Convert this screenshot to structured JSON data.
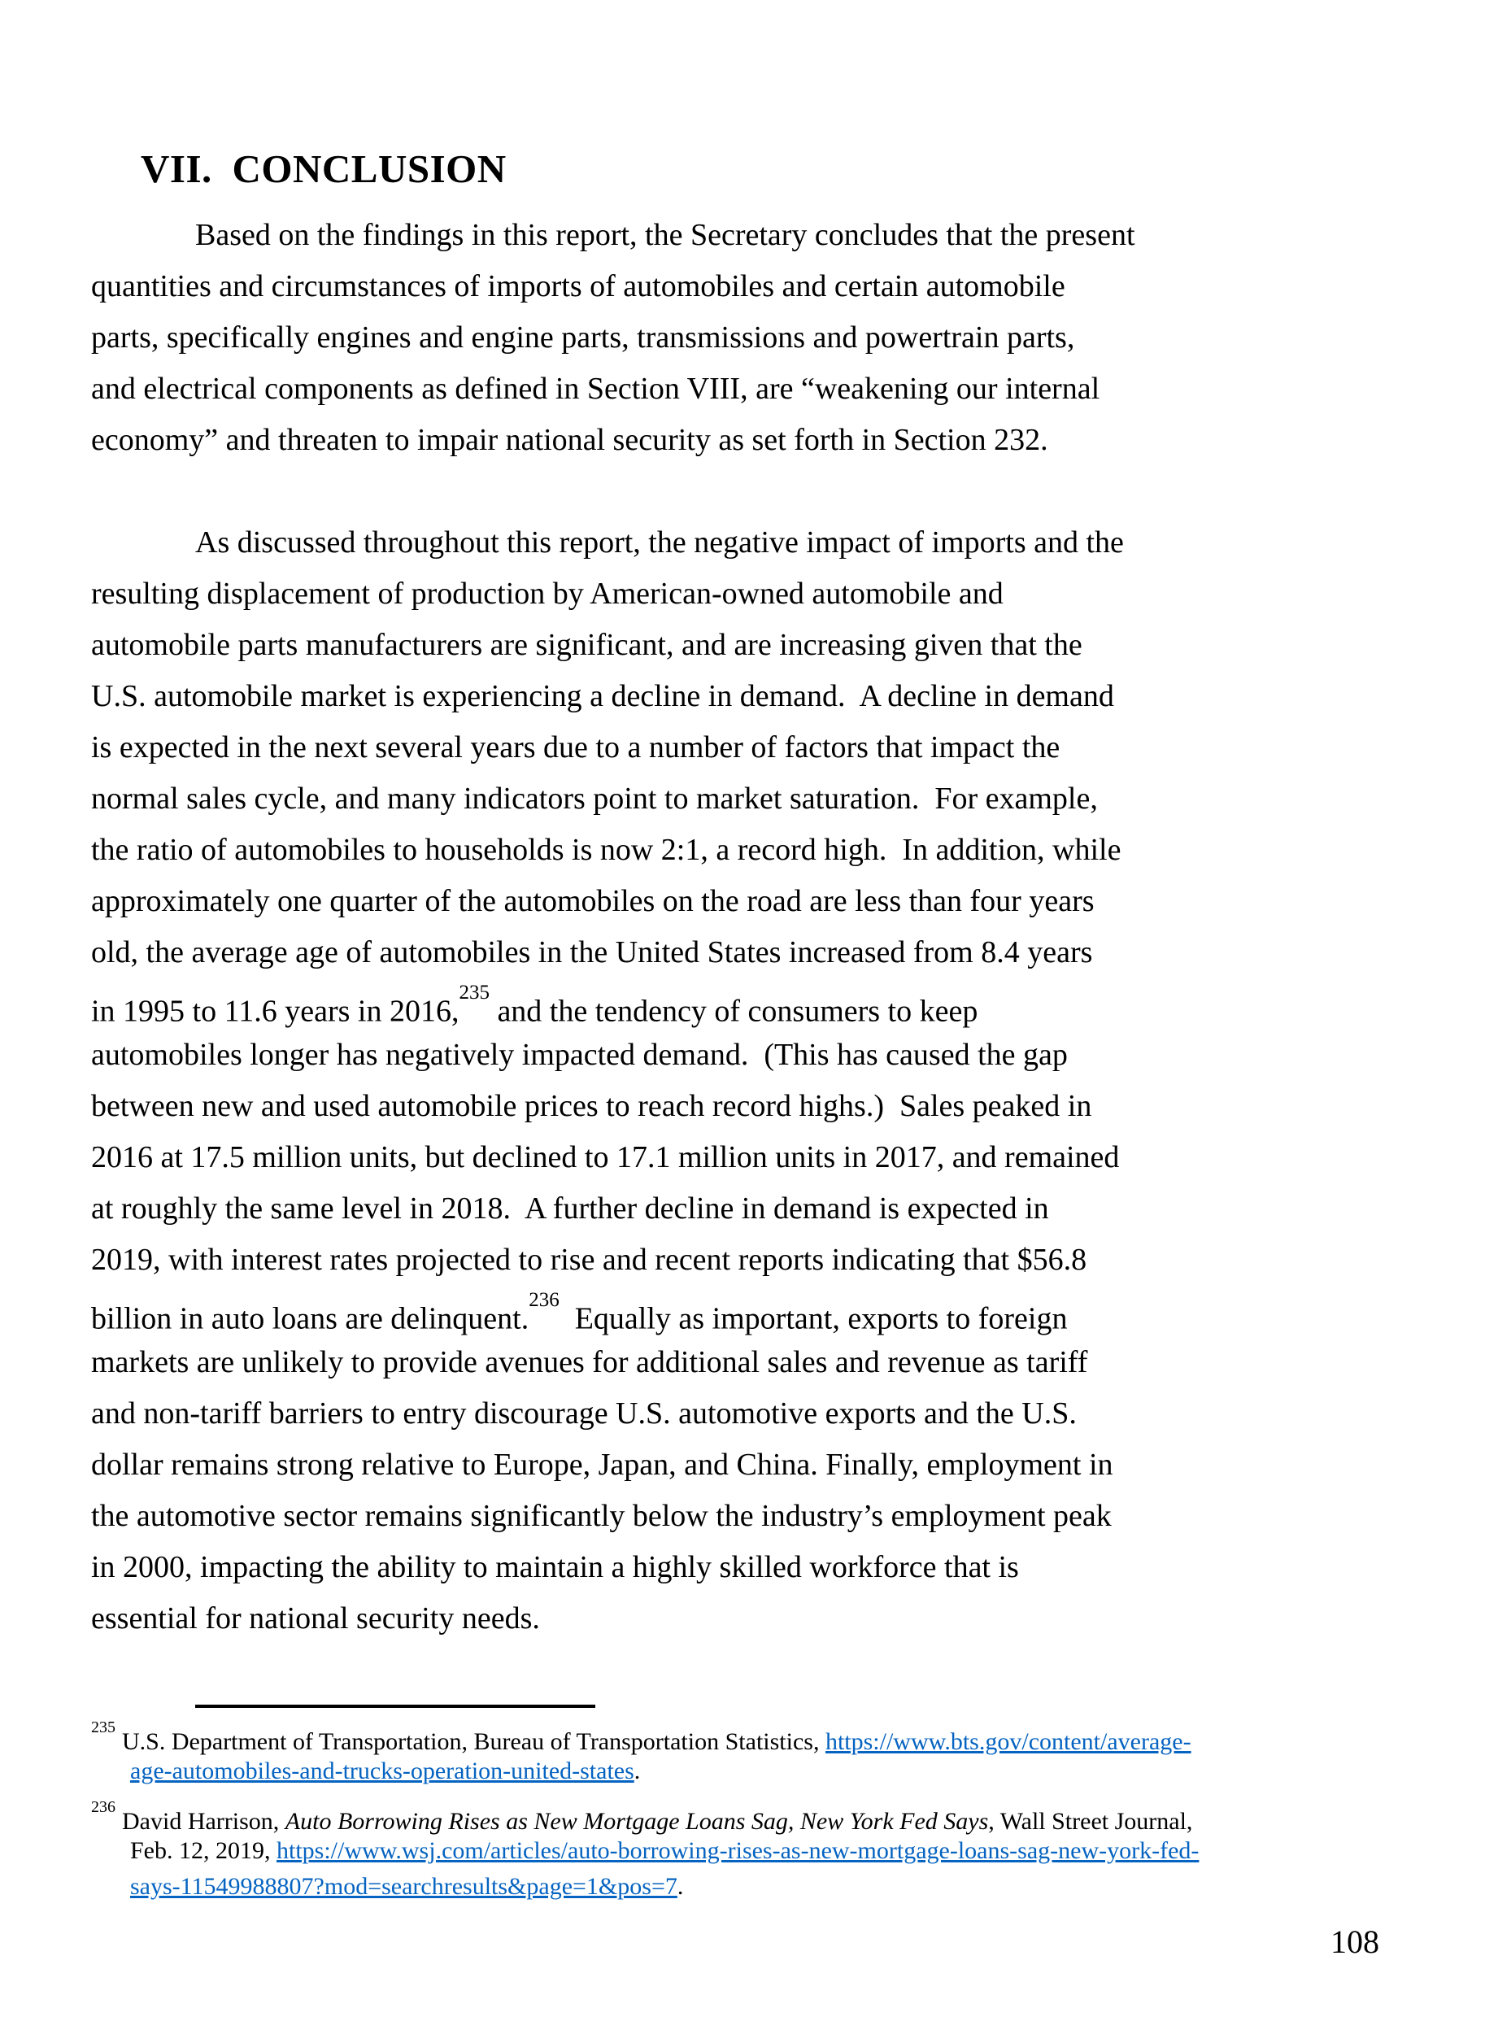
{
  "page": {
    "title": "VII. CONCLUSION",
    "page_number": "108"
  },
  "paragraph1": {
    "lines": [
      "Based on the findings in this report, the Secretary concludes that the present",
      "quantities and circumstances of imports of automobiles and certain automobile",
      "parts, specifically engines and engine parts, transmissions and powertrain parts,",
      "and electrical components as defined in Section VIII, are “weakening our internal",
      "economy” and threaten to impair national security as set forth in Section 232."
    ]
  },
  "paragraph2": {
    "lines_a": [
      "As discussed throughout this report, the negative impact of imports and the",
      "resulting displacement of production by American-owned automobile and",
      "automobile parts manufacturers are significant, and are increasing given that the",
      "U.S. automobile market is experiencing a decline in demand.  A decline in demand",
      "is expected in the next several years due to a number of factors that impact the",
      "normal sales cycle, and many indicators point to market saturation.  For example,",
      "the ratio of automobiles to households is now 2:1, a record high.  In addition, while",
      "approximately one quarter of the automobiles on the road are less than four years",
      "old, the average age of automobiles in the United States increased from 8.4 years"
    ],
    "ref1": {
      "pre": "in 1995 to 11.6 years in 2016,",
      "sup": "235",
      "post": " and the tendency of consumers to keep"
    },
    "lines_b": [
      "automobiles longer has negatively impacted demand.  (This has caused the gap",
      "between new and used automobile prices to reach record highs.)  Sales peaked in",
      "2016 at 17.5 million units, but declined to 17.1 million units in 2017, and remained",
      "at roughly the same level in 2018.  A further decline in demand is expected in",
      "2019, with interest rates projected to rise and recent reports indicating that $56.8"
    ],
    "ref2": {
      "pre": "billion in auto loans are delinquent.",
      "sup": "236",
      "post": "  Equally as important, exports to foreign"
    },
    "lines_c": [
      "markets are unlikely to provide avenues for additional sales and revenue as tariff",
      "and non-tariff barriers to entry discourage U.S. automotive exports and the U.S.",
      "dollar remains strong relative to Europe, Japan, and China. Finally, employment in",
      "the automotive sector remains significantly below the industry’s employment peak",
      "in 2000, impacting the ability to maintain a highly skilled workforce that is",
      "essential for national security needs."
    ]
  },
  "footnotes": {
    "fn235": {
      "marker": "235",
      "line1_text": "U.S. Department of Transportation, Bureau of Transportation Statistics, ",
      "line1_link": "https://www.bts.gov/content/average-",
      "line2_link": "age-automobiles-and-trucks-operation-united-states",
      "line2_tail": "."
    },
    "fn236": {
      "marker": "236",
      "line1_pre": "David Harrison, ",
      "line1_italic": "Auto Borrowing Rises as New Mortgage Loans Sag, New York Fed Says",
      "line1_tail": ", Wall Street Journal,",
      "line2_pre": "Feb. 12, 2019, ",
      "line2_link": "https://www.wsj.com/articles/auto-borrowing-rises-as-new-mortgage-loans-sag-new-york-fed-",
      "line3_link": "says-11549988807?mod=searchresults&page=1&pos=7",
      "line3_tail": "."
    }
  },
  "colors": {
    "text": "#000000",
    "link": "#0563C1",
    "background": "#ffffff"
  }
}
